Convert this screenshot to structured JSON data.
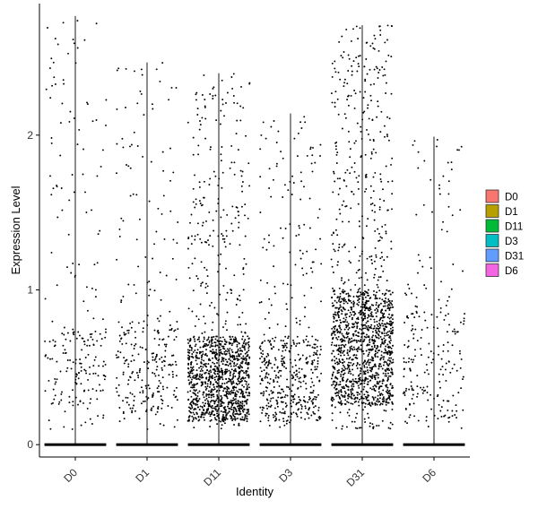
{
  "chart_data": {
    "type": "violin-jitter",
    "xlabel": "Identity",
    "ylabel": "Expression Level",
    "categories": [
      "D0",
      "D1",
      "D11",
      "D3",
      "D31",
      "D6"
    ],
    "yticks": [
      0,
      1,
      2
    ],
    "ylim": [
      -0.08,
      2.85
    ],
    "violin_max": [
      2.77,
      2.47,
      2.4,
      2.14,
      2.71,
      1.99
    ],
    "point_density": [
      {
        "name": "D0",
        "n_nonzero": 230,
        "body_low": 0.25,
        "body_high": 0.75,
        "body_share": 0.55
      },
      {
        "name": "D1",
        "n_nonzero": 300,
        "body_low": 0.2,
        "body_high": 0.8,
        "body_share": 0.55
      },
      {
        "name": "D11",
        "n_nonzero": 1300,
        "body_low": 0.15,
        "body_high": 0.7,
        "body_share": 0.75
      },
      {
        "name": "D3",
        "n_nonzero": 500,
        "body_low": 0.15,
        "body_high": 0.7,
        "body_share": 0.65
      },
      {
        "name": "D31",
        "n_nonzero": 1500,
        "body_low": 0.25,
        "body_high": 1.0,
        "body_share": 0.65
      },
      {
        "name": "D6",
        "n_nonzero": 230,
        "body_low": 0.15,
        "body_high": 0.9,
        "body_share": 0.6
      }
    ],
    "legend": {
      "placement": "right",
      "items": [
        {
          "label": "D0",
          "color": "#F8766D"
        },
        {
          "label": "D1",
          "color": "#B79F00"
        },
        {
          "label": "D11",
          "color": "#00BA38"
        },
        {
          "label": "D3",
          "color": "#00BFC4"
        },
        {
          "label": "D31",
          "color": "#619CFF"
        },
        {
          "label": "D6",
          "color": "#F564E3"
        }
      ]
    },
    "grid": false
  }
}
